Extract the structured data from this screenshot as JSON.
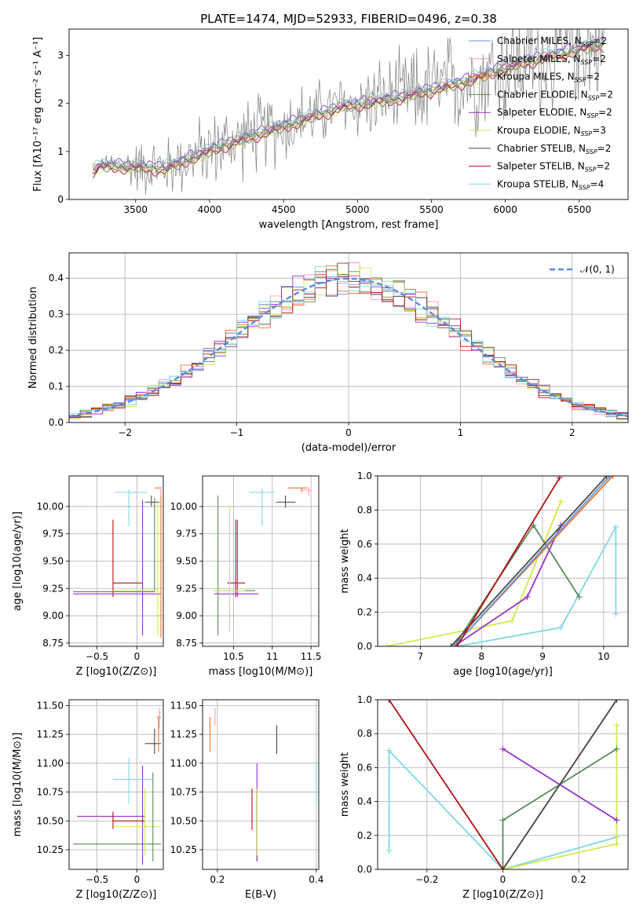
{
  "figure": {
    "title": "PLATE=1474, MJD=52933, FIBERID=0496, z=0.38"
  },
  "chart_data": [
    {
      "id": "spectrum",
      "type": "line",
      "xlabel": "wavelength [Angstrom, rest frame]",
      "ylabel": "Flux [fλ10⁻¹⁷ erg cm⁻² s⁻¹ A⁻¹]",
      "xlim": [
        3050,
        6830
      ],
      "ylim": [
        0,
        3.55
      ],
      "xticks": [
        3500,
        4000,
        4500,
        5000,
        5500,
        6000,
        6500
      ],
      "yticks": [
        0,
        1,
        2,
        3
      ],
      "grid": false,
      "legend_position": "right",
      "observed": {
        "color": "#808080",
        "x_start": 3210,
        "x_end": 6670,
        "x_step": 7,
        "base_anchor_x": [
          3210,
          3260,
          3500,
          3700,
          3900,
          4100,
          4300,
          4500,
          4700,
          4900,
          5100,
          5300,
          5500,
          5700,
          5900,
          6100,
          6300,
          6500,
          6670
        ],
        "base_anchor_y": [
          0.6,
          0.72,
          0.7,
          0.66,
          0.92,
          1.15,
          1.35,
          1.55,
          1.75,
          1.95,
          2.05,
          2.15,
          2.3,
          2.45,
          2.65,
          2.85,
          3.0,
          3.15,
          3.25
        ],
        "noise_anchor_x": [
          3210,
          3500,
          4000,
          4500,
          4800,
          5500,
          6000,
          6670
        ],
        "noise_anchor_y": [
          0.05,
          0.5,
          0.7,
          0.75,
          0.6,
          0.9,
          1.1,
          1.0
        ]
      },
      "series": [
        {
          "name": "Chabrier MILES, N",
          "sub": "SSP",
          "suffix": "=2",
          "color": "#6495ed",
          "offset": 0.02
        },
        {
          "name": "Salpeter MILES, N",
          "sub": "SSP",
          "suffix": "=2",
          "color": "#ff9ab5",
          "offset": -0.03
        },
        {
          "name": "Kroupa MILES, N",
          "sub": "SSP",
          "suffix": "=2",
          "color": "#e8742c",
          "offset": 0.0
        },
        {
          "name": "Chabrier ELODIE, N",
          "sub": "SSP",
          "suffix": "=2",
          "color": "#5a8a5a",
          "offset": -0.05
        },
        {
          "name": "Salpeter ELODIE, N",
          "sub": "SSP",
          "suffix": "=2",
          "color": "#9932cc",
          "offset": 0.05
        },
        {
          "name": "Kroupa ELODIE, N",
          "sub": "SSP",
          "suffix": "=3",
          "color": "#d4e84c",
          "offset": -0.07
        },
        {
          "name": "Chabrier STELIB, N",
          "sub": "SSP",
          "suffix": "=2",
          "color": "#4a4a4a",
          "offset": -0.02
        },
        {
          "name": "Salpeter STELIB, N",
          "sub": "SSP",
          "suffix": "=2",
          "color": "#b01010",
          "offset": -0.09
        },
        {
          "name": "Kroupa STELIB, N",
          "sub": "SSP",
          "suffix": "=4",
          "color": "#7fd8e0",
          "offset": 0.07
        }
      ]
    },
    {
      "id": "residuals",
      "type": "step",
      "xlabel": "(data-model)/error",
      "ylabel": "Normed distribution",
      "xlim": [
        -2.5,
        2.5
      ],
      "ylim": [
        0,
        0.47
      ],
      "xticks": [
        -2,
        -1,
        0,
        1,
        2
      ],
      "yticks": [
        0.0,
        0.1,
        0.2,
        0.3,
        0.4
      ],
      "grid": true,
      "legend_position": "top-right",
      "reference": {
        "name": "𝒩(0, 1)",
        "color": "#5b8ad8",
        "style": "dashed",
        "mean": 0,
        "sigma": 1
      },
      "bin_width": 0.1
    },
    {
      "id": "age-vs-Z",
      "type": "errorbar",
      "xlabel": "Z [log10(Z/Z⊙)]",
      "ylabel": "age  [log10(age/yr)]",
      "xlim": [
        -0.85,
        0.33
      ],
      "ylim": [
        8.72,
        10.28
      ],
      "xticks": [
        -0.5,
        0.0
      ],
      "yticks": [
        8.75,
        9.0,
        9.25,
        9.5,
        9.75,
        10.0
      ],
      "grid": true,
      "points": [
        {
          "color": "#b01010",
          "x": -0.3,
          "y": 9.3,
          "x_lo": -0.3,
          "x_hi": 0.07,
          "y_lo": 9.17,
          "y_hi": 9.88
        },
        {
          "color": "#9932cc",
          "x": 0.07,
          "y": 9.2,
          "x_lo": -0.8,
          "x_hi": 0.3,
          "y_lo": 8.82,
          "y_hi": 10.06
        },
        {
          "color": "#5a8a5a",
          "x": 0.22,
          "y": 9.22,
          "x_lo": -0.8,
          "x_hi": 0.22,
          "y_lo": 9.22,
          "y_hi": 10.08
        },
        {
          "color": "#d4e84c",
          "x": 0.26,
          "y": 9.23,
          "x_lo": -0.3,
          "x_hi": 0.26,
          "y_lo": 8.82,
          "y_hi": 10.02
        },
        {
          "color": "#7fd8e0",
          "x": -0.1,
          "y": 10.13,
          "x_lo": -0.28,
          "x_hi": 0.13,
          "y_lo": 9.82,
          "y_hi": 10.16
        },
        {
          "color": "#4a4a4a",
          "x": 0.18,
          "y": 10.04,
          "x_lo": 0.1,
          "x_hi": 0.28,
          "y_lo": 10.0,
          "y_hi": 10.1
        },
        {
          "color": "#e8742c",
          "x": 0.3,
          "y": 10.17,
          "x_lo": 0.22,
          "x_hi": 0.3,
          "y_lo": 8.8,
          "y_hi": 10.17
        },
        {
          "color": "#ff9ab5",
          "x": 0.3,
          "y": 10.14,
          "x_lo": 0.3,
          "x_hi": 0.3,
          "y_lo": 10.1,
          "y_hi": 10.18
        }
      ]
    },
    {
      "id": "age-vs-mass",
      "type": "errorbar",
      "xlabel": "mass [log10(M/M⊙)]",
      "ylabel": "",
      "xlim": [
        10.1,
        11.6
      ],
      "ylim": [
        8.72,
        10.28
      ],
      "xticks": [
        10.5,
        11.0,
        11.5
      ],
      "yticks": [
        8.75,
        9.0,
        9.25,
        9.5,
        9.75,
        10.0
      ],
      "grid": true,
      "points": [
        {
          "color": "#b01010",
          "x": 10.53,
          "y": 9.3,
          "x_lo": 10.42,
          "x_hi": 10.65,
          "y_lo": 9.17,
          "y_hi": 9.88
        },
        {
          "color": "#9932cc",
          "x": 10.55,
          "y": 9.2,
          "x_lo": 10.25,
          "x_hi": 10.82,
          "y_lo": 9.17,
          "y_hi": 9.88
        },
        {
          "color": "#5a8a5a",
          "x": 10.3,
          "y": 9.23,
          "x_lo": 10.25,
          "x_hi": 10.78,
          "y_lo": 8.82,
          "y_hi": 10.1
        },
        {
          "color": "#d4e84c",
          "x": 10.45,
          "y": 9.23,
          "x_lo": 10.25,
          "x_hi": 10.65,
          "y_lo": 8.85,
          "y_hi": 10.0
        },
        {
          "color": "#7fd8e0",
          "x": 10.87,
          "y": 10.13,
          "x_lo": 10.7,
          "x_hi": 11.03,
          "y_lo": 9.82,
          "y_hi": 10.16
        },
        {
          "color": "#4a4a4a",
          "x": 11.17,
          "y": 10.04,
          "x_lo": 11.05,
          "x_hi": 11.3,
          "y_lo": 9.99,
          "y_hi": 10.1
        },
        {
          "color": "#e8742c",
          "x": 11.38,
          "y": 10.17,
          "x_lo": 11.2,
          "x_hi": 11.45,
          "y_lo": 10.13,
          "y_hi": 10.17
        },
        {
          "color": "#ff9ab5",
          "x": 11.47,
          "y": 10.15,
          "x_lo": 11.38,
          "x_hi": 11.5,
          "y_lo": 10.1,
          "y_hi": 10.18
        }
      ]
    },
    {
      "id": "weight-vs-age",
      "type": "line",
      "xlabel": "age  [log10(age/yr)]",
      "ylabel": "mass weight",
      "xlim": [
        6.3,
        10.4
      ],
      "ylim": [
        0,
        1
      ],
      "xticks": [
        7,
        8,
        9,
        10
      ],
      "yticks": [
        0.0,
        0.2,
        0.4,
        0.6,
        0.8,
        1.0
      ],
      "grid": true,
      "series": [
        {
          "color": "#7fd8e0",
          "x": [
            7.6,
            9.3,
            10.2,
            10.2
          ],
          "y": [
            0.0,
            0.11,
            0.7,
            0.19
          ]
        },
        {
          "color": "#d4e84c",
          "x": [
            6.45,
            8.5,
            9.3
          ],
          "y": [
            0.0,
            0.15,
            0.85
          ]
        },
        {
          "color": "#5a8a5a",
          "x": [
            7.55,
            8.85,
            9.6
          ],
          "y": [
            0.0,
            0.71,
            0.29
          ]
        },
        {
          "color": "#9932cc",
          "x": [
            7.55,
            8.75,
            9.3
          ],
          "y": [
            0.0,
            0.29,
            0.71
          ]
        },
        {
          "color": "#e8742c",
          "x": [
            7.55,
            10.15
          ],
          "y": [
            0.0,
            1.0
          ]
        },
        {
          "color": "#6495ed",
          "x": [
            7.55,
            10.1
          ],
          "y": [
            0.0,
            1.0
          ]
        },
        {
          "color": "#4a4a4a",
          "x": [
            7.5,
            10.05
          ],
          "y": [
            0.0,
            1.0
          ]
        },
        {
          "color": "#b01010",
          "x": [
            7.6,
            9.28
          ],
          "y": [
            0.0,
            0.99
          ]
        }
      ]
    },
    {
      "id": "mass-vs-Z",
      "type": "errorbar",
      "xlabel": "Z [log10(Z/Z⊙)]",
      "ylabel": "mass [log10(M/M⊙)]",
      "xlim": [
        -0.85,
        0.33
      ],
      "ylim": [
        10.08,
        11.55
      ],
      "xticks": [
        -0.5,
        0.0
      ],
      "yticks": [
        10.25,
        10.5,
        10.75,
        11.0,
        11.25,
        11.5
      ],
      "grid": true,
      "points": [
        {
          "color": "#5a8a5a",
          "x": -0.3,
          "y": 10.3,
          "x_lo": -0.8,
          "x_hi": 0.3,
          "y_lo": 10.3,
          "y_hi": 10.3
        },
        {
          "color": "#9932cc",
          "x": 0.07,
          "y": 10.54,
          "x_lo": -0.75,
          "x_hi": 0.1,
          "y_lo": 10.12,
          "y_hi": 10.98
        },
        {
          "color": "#b01010",
          "x": -0.3,
          "y": 10.5,
          "x_lo": -0.3,
          "x_hi": 0.1,
          "y_lo": 10.43,
          "y_hi": 10.58
        },
        {
          "color": "#d4e84c",
          "x": 0.1,
          "y": 10.45,
          "x_lo": -0.3,
          "x_hi": 0.3,
          "y_lo": 10.2,
          "y_hi": 10.78
        },
        {
          "color": "#7fd8e0",
          "x": -0.1,
          "y": 10.86,
          "x_lo": -0.3,
          "x_hi": 0.2,
          "y_lo": 10.65,
          "y_hi": 11.05
        },
        {
          "color": "#4a4a4a",
          "x": 0.22,
          "y": 11.17,
          "x_lo": 0.1,
          "x_hi": 0.3,
          "y_lo": 11.08,
          "y_hi": 11.3
        },
        {
          "color": "#e8742c",
          "x": 0.27,
          "y": 11.4,
          "x_lo": 0.25,
          "x_hi": 0.3,
          "y_lo": 11.1,
          "y_hi": 11.4
        },
        {
          "color": "#ff9ab5",
          "x": 0.28,
          "y": 11.44,
          "x_lo": 0.27,
          "x_hi": 0.3,
          "y_lo": 11.3,
          "y_hi": 11.48
        },
        {
          "color": "#5a8a5a",
          "x": 0.2,
          "y": 10.5,
          "x_lo": 0.2,
          "x_hi": 0.2,
          "y_lo": 10.15,
          "y_hi": 10.92
        }
      ]
    },
    {
      "id": "mass-vs-EBV",
      "type": "errorbar",
      "xlabel": "E(B-V)",
      "ylabel": "",
      "xlim": [
        0.17,
        0.405
      ],
      "ylim": [
        10.08,
        11.55
      ],
      "xticks": [
        0.2,
        0.4
      ],
      "yticks": [
        10.25,
        10.5,
        10.75,
        11.0,
        11.25,
        11.5
      ],
      "grid": true,
      "points": [
        {
          "color": "#5a8a5a",
          "x": 0.28,
          "y": 10.45,
          "x_lo": 0.28,
          "x_hi": 0.28,
          "y_lo": 10.15,
          "y_hi": 10.78
        },
        {
          "color": "#b01010",
          "x": 0.27,
          "y": 10.6,
          "x_lo": 0.27,
          "x_hi": 0.27,
          "y_lo": 10.42,
          "y_hi": 10.78
        },
        {
          "color": "#9932cc",
          "x": 0.28,
          "y": 10.55,
          "x_lo": 0.28,
          "x_hi": 0.28,
          "y_lo": 10.15,
          "y_hi": 11.0
        },
        {
          "color": "#d4e84c",
          "x": 0.28,
          "y": 10.45,
          "x_lo": 0.28,
          "x_hi": 0.28,
          "y_lo": 10.2,
          "y_hi": 10.78
        },
        {
          "color": "#7fd8e0",
          "x": 0.4,
          "y": 10.86,
          "x_lo": 0.4,
          "x_hi": 0.4,
          "y_lo": 10.66,
          "y_hi": 11.04
        },
        {
          "color": "#4a4a4a",
          "x": 0.32,
          "y": 11.2,
          "x_lo": 0.32,
          "x_hi": 0.32,
          "y_lo": 11.08,
          "y_hi": 11.33
        },
        {
          "color": "#e8742c",
          "x": 0.185,
          "y": 11.25,
          "x_lo": 0.185,
          "x_hi": 0.185,
          "y_lo": 11.1,
          "y_hi": 11.4
        },
        {
          "color": "#ff9ab5",
          "x": 0.195,
          "y": 11.4,
          "x_lo": 0.195,
          "x_hi": 0.195,
          "y_lo": 11.33,
          "y_hi": 11.48
        }
      ]
    },
    {
      "id": "weight-vs-Z",
      "type": "line",
      "xlabel": "Z [log10(Z/Z⊙)]",
      "ylabel": "mass weight",
      "xlim": [
        -0.33,
        0.33
      ],
      "ylim": [
        0,
        1
      ],
      "xticks": [
        -0.2,
        0.0,
        0.2
      ],
      "yticks": [
        0.0,
        0.2,
        0.4,
        0.6,
        0.8,
        1.0
      ],
      "grid": true,
      "series": [
        {
          "color": "#7fd8e0",
          "x": [
            -0.3,
            -0.3,
            0.0,
            0.3
          ],
          "y": [
            0.11,
            0.7,
            0.0,
            0.19
          ]
        },
        {
          "color": "#d4e84c",
          "x": [
            0.0,
            0.3,
            0.3
          ],
          "y": [
            0.0,
            0.15,
            0.85
          ]
        },
        {
          "color": "#5a8a5a",
          "x": [
            0.0,
            0.0,
            0.3
          ],
          "y": [
            0.0,
            0.29,
            0.71
          ]
        },
        {
          "color": "#9932cc",
          "x": [
            0.0,
            0.3
          ],
          "y": [
            0.71,
            0.29
          ]
        },
        {
          "color": "#e8742c",
          "x": [
            0.0,
            0.3
          ],
          "y": [
            0.0,
            1.0
          ]
        },
        {
          "color": "#4a4a4a",
          "x": [
            0.0,
            0.3
          ],
          "y": [
            0.0,
            1.0
          ]
        },
        {
          "color": "#b01010",
          "x": [
            -0.3,
            0.0
          ],
          "y": [
            1.0,
            0.0
          ]
        }
      ]
    }
  ]
}
